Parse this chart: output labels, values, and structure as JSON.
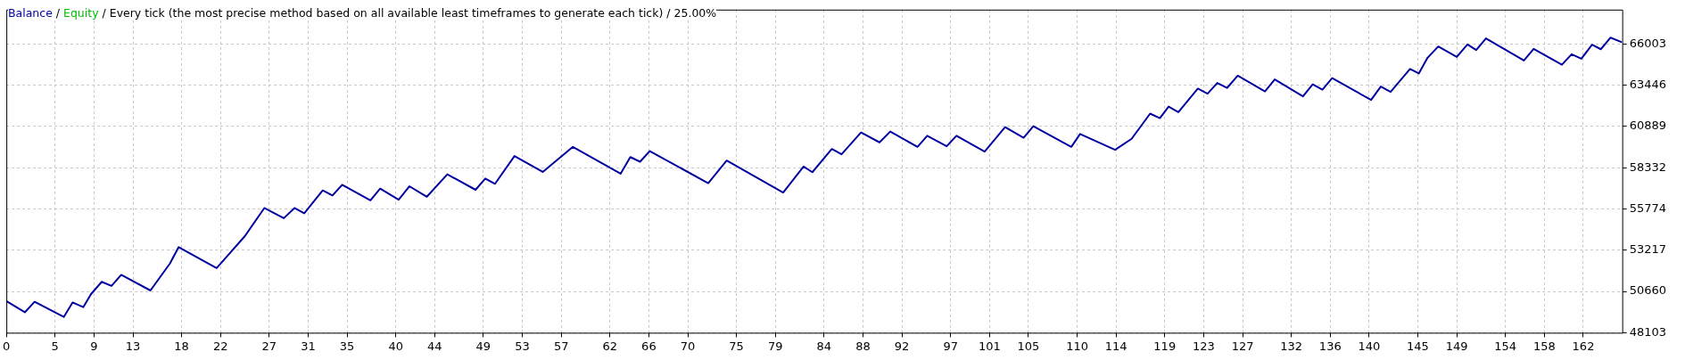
{
  "chart_data": {
    "type": "line",
    "subtitle": "Every tick (the most precise method based on all available least timeframes to generate each tick) / 25.00%",
    "x": [
      0,
      1.9,
      2.9,
      5.9,
      6.8,
      7.9,
      8.7,
      9.8,
      10.8,
      11.8,
      14.8,
      16.8,
      17.7,
      21.6,
      24.5,
      26.5,
      28.5,
      29.6,
      30.6,
      32.5,
      33.5,
      34.5,
      37.4,
      38.4,
      40.3,
      41.4,
      43.2,
      45.3,
      48.2,
      49.2,
      50.2,
      52.2,
      55.1,
      58.2,
      63.1,
      64.1,
      65.1,
      66.1,
      72.1,
      74,
      79.8,
      81.9,
      82.8,
      84.8,
      85.8,
      87.8,
      89.7,
      90.8,
      93.6,
      94.6,
      96.6,
      97.6,
      100.5,
      102.6,
      104.5,
      105.5,
      109.4,
      110.3,
      113.9,
      115.6,
      117.5,
      118.5,
      119.4,
      120.4,
      122.4,
      123.4,
      124.4,
      125.4,
      126.5,
      129.3,
      130.3,
      133.2,
      134.2,
      135.2,
      136.2,
      140.2,
      141.2,
      142.2,
      144.2,
      145.1,
      146,
      147.1,
      149,
      150.1,
      151,
      152,
      155.9,
      156.9,
      159.8,
      160.8,
      161.8,
      162.9,
      163.8,
      164.8,
      165.9
    ],
    "series": [
      {
        "name": "Balance",
        "color": "#0000a0",
        "values": [
          50060,
          49370,
          50020,
          49080,
          49980,
          49690,
          50500,
          51260,
          51000,
          51690,
          50720,
          52390,
          53410,
          52110,
          54090,
          55830,
          55200,
          55830,
          55500,
          56920,
          56610,
          57270,
          56310,
          57030,
          56350,
          57180,
          56530,
          57920,
          56960,
          57660,
          57330,
          59050,
          58070,
          59620,
          57960,
          58990,
          58700,
          59360,
          57370,
          58770,
          56790,
          58400,
          58050,
          59490,
          59160,
          60510,
          59900,
          60570,
          59620,
          60310,
          59660,
          60310,
          59330,
          60840,
          60180,
          60900,
          59620,
          60420,
          59440,
          60120,
          61680,
          61400,
          62120,
          61770,
          63230,
          62920,
          63580,
          63270,
          64030,
          63060,
          63800,
          62750,
          63490,
          63160,
          63880,
          62530,
          63360,
          63030,
          64450,
          64170,
          65140,
          65840,
          65190,
          65970,
          65620,
          66340,
          64970,
          65690,
          64710,
          65360,
          65080,
          65950,
          65670,
          66390,
          66120
        ]
      },
      {
        "name": "Equity",
        "color": "#00c000",
        "values": [
          null,
          null,
          null,
          null,
          null,
          null,
          null,
          null,
          null,
          null,
          null,
          null,
          null,
          null,
          null,
          null,
          null,
          null,
          null,
          null,
          null,
          null,
          null,
          null,
          null,
          null,
          null,
          null,
          null,
          null,
          null,
          null,
          null,
          null,
          null,
          null,
          null,
          null,
          null,
          null,
          null,
          null,
          null,
          null,
          null,
          null,
          null,
          null,
          null,
          null,
          null,
          null,
          null,
          null,
          null,
          null,
          null,
          null,
          null,
          null,
          null,
          null,
          null,
          null,
          null,
          null,
          null,
          null,
          null,
          null,
          null,
          null,
          null,
          null,
          null,
          null,
          null,
          null,
          null,
          null,
          null,
          null,
          null,
          null,
          null,
          null,
          null,
          null,
          null,
          null,
          null,
          null,
          null,
          null,
          null
        ]
      }
    ],
    "xlim": [
      0,
      166
    ],
    "xticks": [
      0,
      5,
      9,
      13,
      18,
      22,
      27,
      31,
      35,
      40,
      44,
      49,
      53,
      57,
      62,
      66,
      70,
      75,
      79,
      84,
      88,
      92,
      97,
      101,
      105,
      110,
      114,
      119,
      123,
      127,
      132,
      136,
      140,
      145,
      149,
      154,
      158,
      162
    ],
    "legend_title": "/",
    "ylim": [
      48103,
      68125
    ],
    "yticks": [
      48103,
      50660,
      53217,
      55774,
      58332,
      60889,
      63446,
      66003
    ],
    "grid": true,
    "legend": "top left",
    "marker": "none",
    "line_style": "solid"
  }
}
